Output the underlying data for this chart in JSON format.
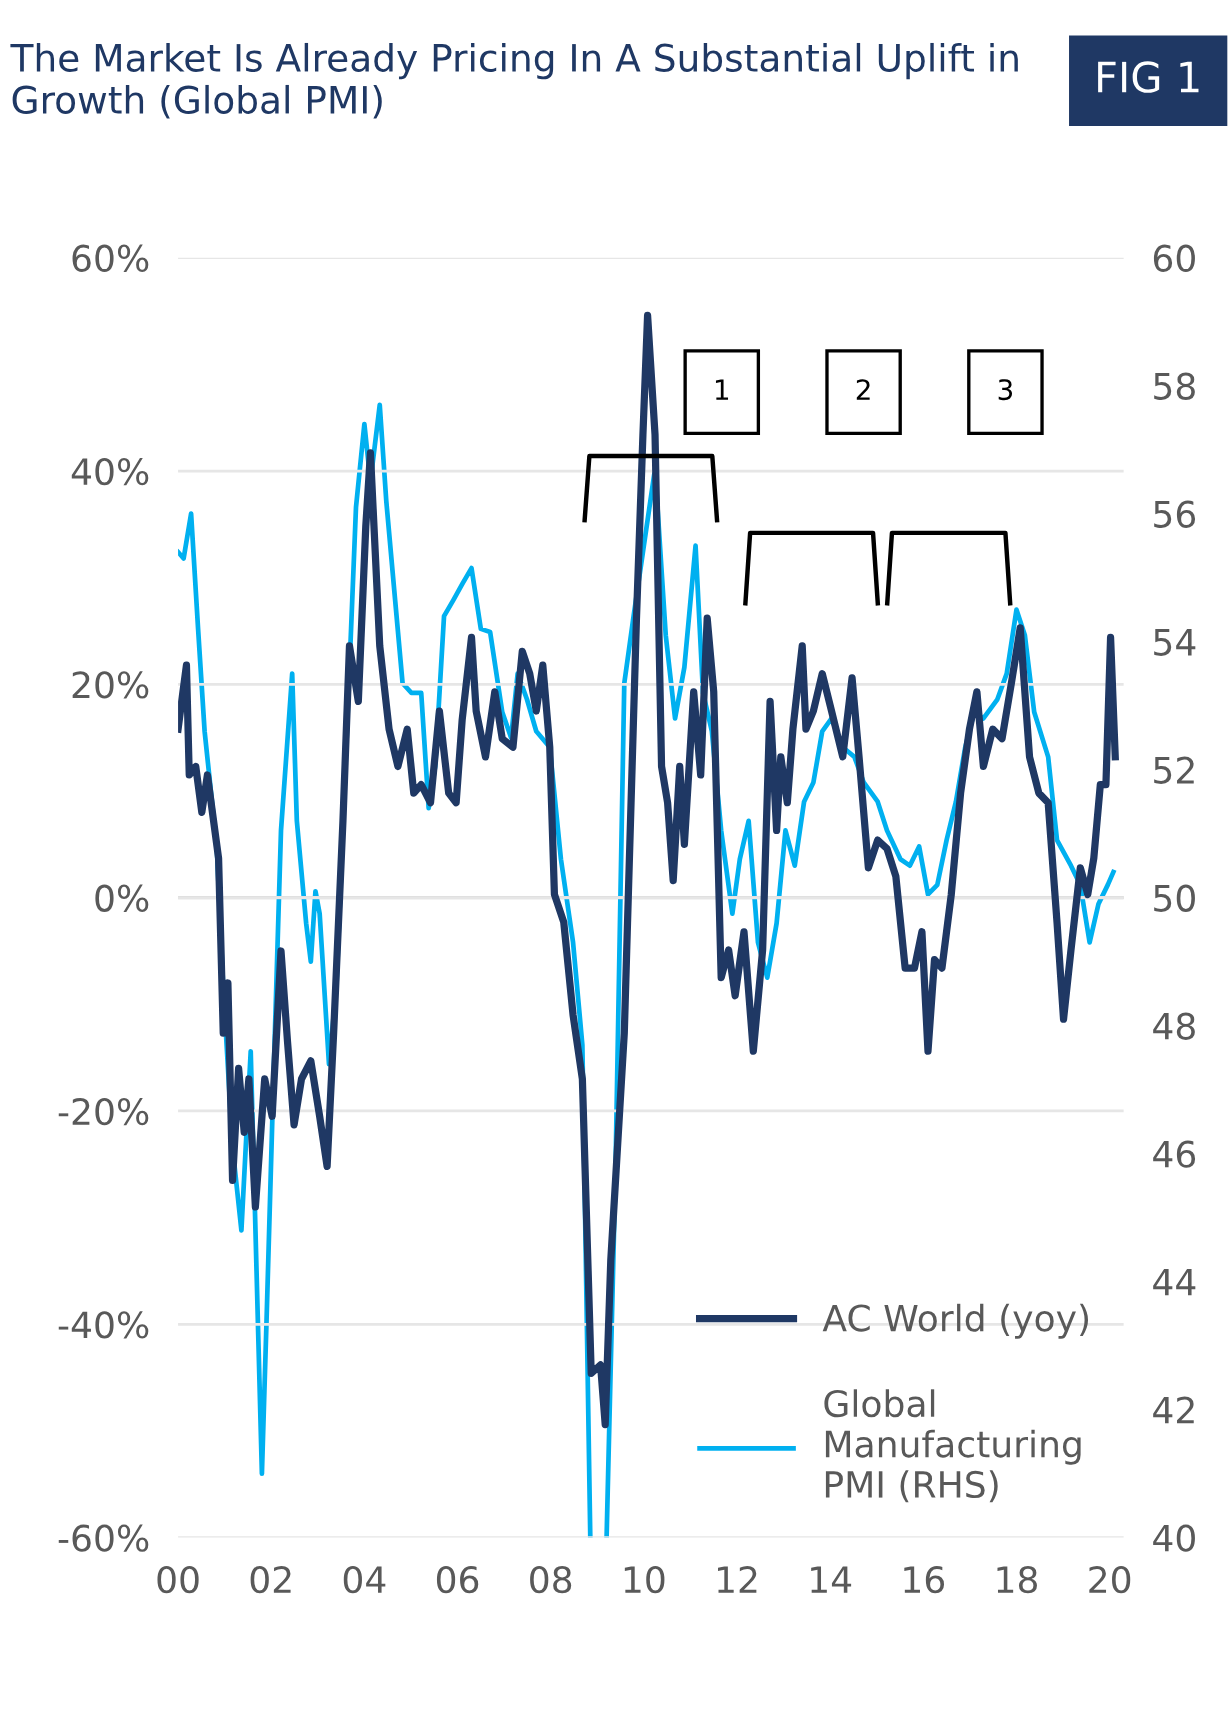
{
  "chart_data": {
    "type": "line",
    "title": "The Market Is Already Pricing In A Substantial Uplift in Growth (Global PMI)",
    "subtitle": "FIG 1",
    "xlim": [
      2000,
      2020.3
    ],
    "xticks": [
      {
        "value": 2000,
        "label": "00"
      },
      {
        "value": 2002,
        "label": "02"
      },
      {
        "value": 2004,
        "label": "04"
      },
      {
        "value": 2006,
        "label": "06"
      },
      {
        "value": 2008,
        "label": "08"
      },
      {
        "value": 2010,
        "label": "10"
      },
      {
        "value": 2012,
        "label": "12"
      },
      {
        "value": 2014,
        "label": "14"
      },
      {
        "value": 2016,
        "label": "16"
      },
      {
        "value": 2018,
        "label": "18"
      },
      {
        "value": 2020,
        "label": "20"
      }
    ],
    "ylim": [
      -60,
      60
    ],
    "yticks": [
      {
        "value": -60,
        "label": "-60%"
      },
      {
        "value": -40,
        "label": "-40%"
      },
      {
        "value": -20,
        "label": "-20%"
      },
      {
        "value": 0,
        "label": "0%"
      },
      {
        "value": 20,
        "label": "20%"
      },
      {
        "value": 40,
        "label": "40%"
      },
      {
        "value": 60,
        "label": "60%"
      }
    ],
    "y2lim": [
      40,
      60
    ],
    "y2ticks": [
      40,
      42,
      44,
      46,
      48,
      50,
      52,
      54,
      56,
      58,
      60
    ],
    "grid": "y",
    "legend": "bottom right",
    "marker": "none",
    "line_style": "solid",
    "annotations": [
      "1",
      "2",
      "3"
    ],
    "series": [
      {
        "name": "AC World (yoy)",
        "color": "#1f3864",
        "x": [
          2000.0,
          2000.18,
          2000.24,
          2000.38,
          2000.51,
          2000.63,
          2000.87,
          2000.97,
          2001.07,
          2001.17,
          2001.3,
          2001.42,
          2001.52,
          2001.66,
          2001.86,
          2002.02,
          2002.21,
          2002.35,
          2002.49,
          2002.65,
          2002.85,
          2003.04,
          2003.2,
          2003.34,
          2003.54,
          2003.68,
          2003.87,
          2004.03,
          2004.13,
          2004.33,
          2004.53,
          2004.72,
          2004.92,
          2005.06,
          2005.22,
          2005.42,
          2005.61,
          2005.81,
          2005.97,
          2006.1,
          2006.3,
          2006.4,
          2006.6,
          2006.8,
          2006.96,
          2007.19,
          2007.39,
          2007.55,
          2007.69,
          2007.83,
          2007.98,
          2008.08,
          2008.28,
          2008.48,
          2008.68,
          2008.87,
          2009.07,
          2009.17,
          2009.29,
          2009.58,
          2009.84,
          2009.98,
          2010.08,
          2010.24,
          2010.38,
          2010.51,
          2010.63,
          2010.77,
          2010.87,
          2011.07,
          2011.22,
          2011.36,
          2011.5,
          2011.66,
          2011.82,
          2011.96,
          2012.15,
          2012.35,
          2012.55,
          2012.71,
          2012.85,
          2012.94,
          2013.08,
          2013.2,
          2013.4,
          2013.48,
          2013.64,
          2013.83,
          2014.03,
          2014.27,
          2014.47,
          2014.62,
          2014.82,
          2015.02,
          2015.22,
          2015.41,
          2015.61,
          2015.81,
          2015.97,
          2016.1,
          2016.24,
          2016.4,
          2016.6,
          2016.8,
          2016.99,
          2017.15,
          2017.29,
          2017.49,
          2017.69,
          2017.89,
          2018.08,
          2018.28,
          2018.48,
          2018.68,
          2018.87,
          2019.01,
          2019.17,
          2019.37,
          2019.53,
          2019.66,
          2019.8,
          2019.92,
          2020.02,
          2020.12
        ],
        "values": [
          15.8,
          21.8,
          11.5,
          12.3,
          8,
          11.5,
          3.7,
          -12.7,
          -8,
          -26.5,
          -16,
          -22,
          -17,
          -29,
          -17,
          -20.5,
          -5,
          -13.5,
          -21.3,
          -17,
          -15.3,
          -20.5,
          -25.2,
          -12.7,
          7.2,
          23.6,
          18.4,
          34.8,
          41.7,
          23.6,
          15.8,
          12.3,
          15.8,
          9.8,
          10.6,
          8.9,
          17.5,
          9.8,
          8.9,
          16.7,
          24.4,
          17.5,
          13.2,
          19.3,
          14.9,
          14.1,
          23.1,
          21,
          17.5,
          21.8,
          14.1,
          0.3,
          -2.3,
          -11,
          -17,
          -44.6,
          -43.8,
          -49.4,
          -34,
          -12.7,
          26,
          43.4,
          54.6,
          43.4,
          12.3,
          8.9,
          1.6,
          12.3,
          5,
          19.3,
          11.5,
          26.2,
          19.3,
          -7.5,
          -4.9,
          -9.2,
          -3.2,
          -14.4,
          -4.9,
          18.4,
          6.3,
          13.2,
          8.9,
          15.8,
          23.6,
          15.8,
          17.5,
          21,
          17.5,
          13.2,
          20.6,
          13.2,
          2.8,
          5.4,
          4.6,
          2,
          -6.6,
          -6.6,
          -3.2,
          -14.4,
          -5.8,
          -6.6,
          0.3,
          9.8,
          15.8,
          19.3,
          12.3,
          15.8,
          14.9,
          20.1,
          25.3,
          13.2,
          9.8,
          8.9,
          -2.3,
          -11.4,
          -4.9,
          2.8,
          0.3,
          3.7,
          10.6,
          10.6,
          24.4,
          13.2
        ]
      },
      {
        "name": "Global Manufacturing PMI (RHS)",
        "color": "#00b0f0",
        "axis": "y2",
        "x": [
          2000.0,
          2000.12,
          2000.28,
          2000.43,
          2000.57,
          2000.83,
          2000.97,
          2001.17,
          2001.36,
          2001.56,
          2001.8,
          2001.9,
          2002.05,
          2002.21,
          2002.45,
          2002.55,
          2002.75,
          2002.85,
          2002.95,
          2003.04,
          2003.24,
          2003.4,
          2003.62,
          2003.82,
          2004.0,
          2004.13,
          2004.33,
          2004.47,
          2004.66,
          2004.82,
          2005.01,
          2005.22,
          2005.38,
          2005.52,
          2005.71,
          2005.91,
          2006.1,
          2006.3,
          2006.5,
          2006.7,
          2006.96,
          2007.15,
          2007.29,
          2007.49,
          2007.69,
          2007.98,
          2008.22,
          2008.48,
          2008.68,
          2008.85,
          2009.0,
          2009.2,
          2009.39,
          2009.58,
          2009.78,
          2009.98,
          2010.24,
          2010.47,
          2010.67,
          2010.87,
          2011.11,
          2011.27,
          2011.46,
          2011.66,
          2011.9,
          2012.06,
          2012.25,
          2012.45,
          2012.65,
          2012.85,
          2013.04,
          2013.24,
          2013.44,
          2013.64,
          2013.83,
          2014.03,
          2014.27,
          2014.52,
          2014.72,
          2015.02,
          2015.22,
          2015.51,
          2015.71,
          2015.91,
          2016.1,
          2016.3,
          2016.5,
          2016.7,
          2016.9,
          2017.09,
          2017.29,
          2017.59,
          2017.79,
          2018.0,
          2018.18,
          2018.38,
          2018.68,
          2018.87,
          2019.17,
          2019.37,
          2019.57,
          2019.76,
          2019.96,
          2020.08
        ],
        "values": [
          55.4,
          55.3,
          56.0,
          54.2,
          52.6,
          50.8,
          48.6,
          46.1,
          44.8,
          47.6,
          41.0,
          43.4,
          47.2,
          51.05,
          53.5,
          51.2,
          49.6,
          49.0,
          50.1,
          49.75,
          47.4,
          48.6,
          52.5,
          56.1,
          57.4,
          56.5,
          57.7,
          56.2,
          54.65,
          53.35,
          53.2,
          53.2,
          51.4,
          52.05,
          54.4,
          54.65,
          54.9,
          55.15,
          54.2,
          54.15,
          52.9,
          52.5,
          53.5,
          53.1,
          52.6,
          52.35,
          50.6,
          49.3,
          47.7,
          40.0,
          null,
          40.0,
          45.7,
          53.35,
          54.4,
          55.4,
          56.7,
          54.1,
          52.8,
          53.6,
          55.5,
          53.2,
          52.6,
          51.05,
          49.75,
          50.6,
          51.2,
          49.3,
          48.75,
          49.6,
          51.05,
          50.5,
          51.5,
          51.8,
          52.6,
          52.8,
          52.35,
          52.2,
          51.8,
          51.5,
          51.05,
          50.6,
          50.5,
          50.8,
          50.05,
          50.2,
          50.9,
          51.5,
          52.35,
          52.9,
          52.8,
          53.1,
          53.5,
          54.5,
          54.1,
          52.9,
          52.2,
          50.9,
          50.5,
          50.2,
          49.3,
          49.9,
          50.2,
          50.4
        ]
      }
    ]
  }
}
